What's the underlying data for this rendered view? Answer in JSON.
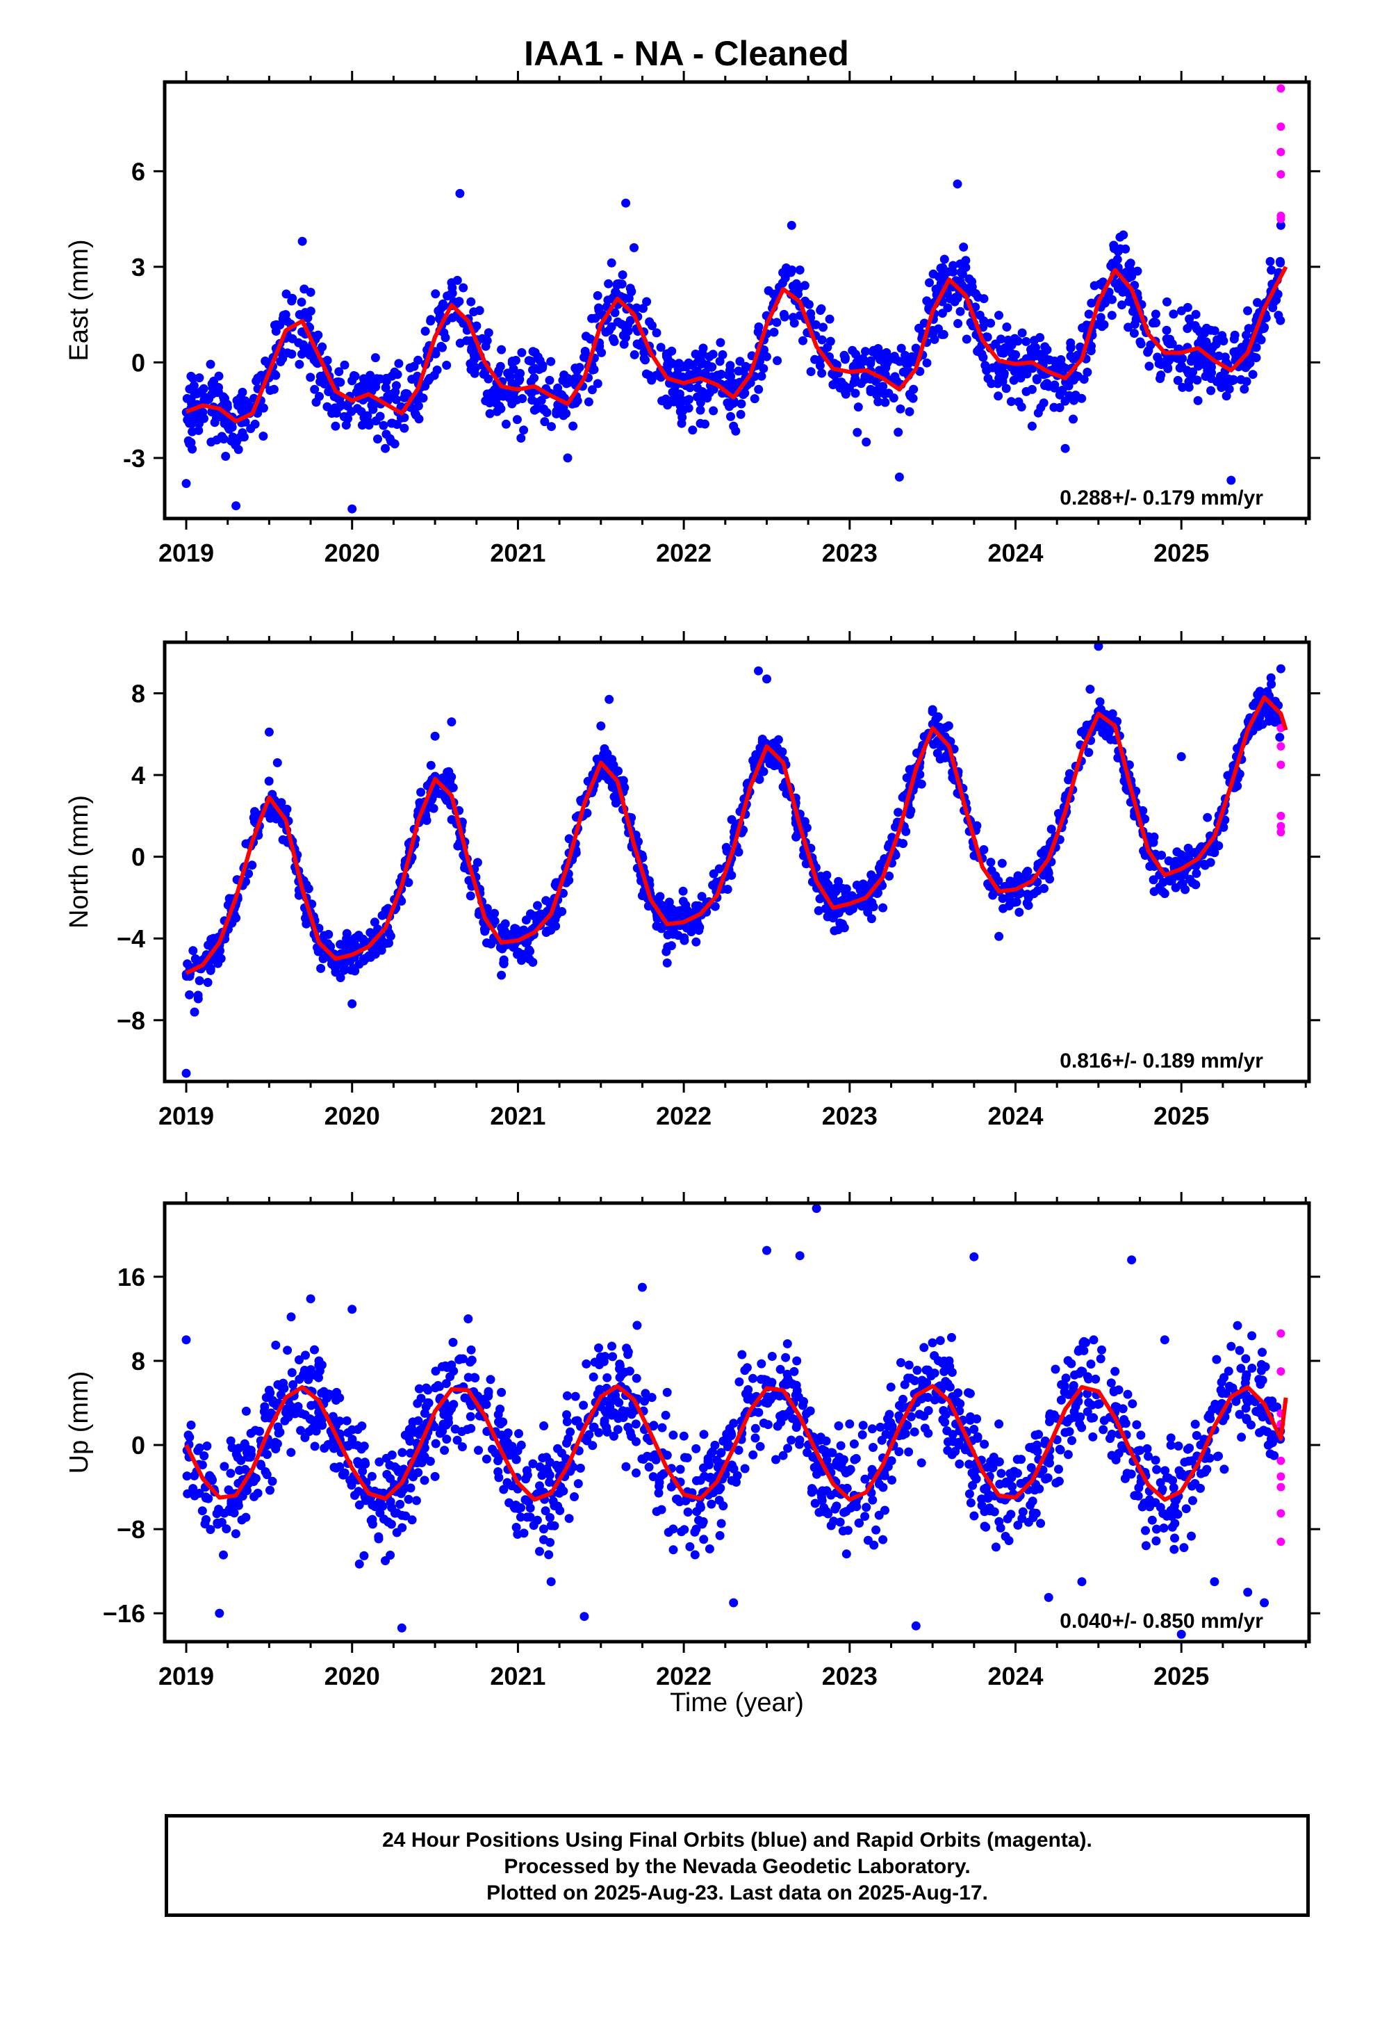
{
  "title": "IAA1  - NA - Cleaned",
  "xlabel": "Time (year)",
  "footer": {
    "line1": "24 Hour Positions Using Final Orbits (blue) and Rapid Orbits (magenta).",
    "line2": "Processed by the Nevada Geodetic Laboratory.",
    "line3": "Plotted on 2025-Aug-23. Last data on 2025-Aug-17."
  },
  "colors": {
    "final": "#0000ff",
    "rapid": "#ff00ff",
    "model": "#ff0000",
    "frame": "#000000"
  },
  "chart_data": [
    {
      "type": "scatter",
      "ylabel": "East (mm)",
      "rate": "0.288+/- 0.179 mm/yr",
      "xlim": [
        2018.87,
        2025.77
      ],
      "ylim": [
        -4.9,
        8.8
      ],
      "xticks": [
        2019,
        2020,
        2021,
        2022,
        2023,
        2024,
        2025
      ],
      "xticklabels": [
        "2019",
        "2020",
        "2021",
        "2022",
        "2023",
        "2024",
        "2025"
      ],
      "yticks": [
        -3,
        0,
        3,
        6
      ],
      "yticklabels": [
        "-3",
        "0",
        "3",
        "6"
      ],
      "model": {
        "x": [
          2019.0,
          2019.1,
          2019.2,
          2019.3,
          2019.4,
          2019.5,
          2019.6,
          2019.7,
          2019.8,
          2019.9,
          2020.0,
          2020.1,
          2020.2,
          2020.3,
          2020.4,
          2020.5,
          2020.6,
          2020.7,
          2020.8,
          2020.9,
          2021.0,
          2021.1,
          2021.2,
          2021.3,
          2021.4,
          2021.5,
          2021.6,
          2021.7,
          2021.8,
          2021.9,
          2022.0,
          2022.1,
          2022.2,
          2022.3,
          2022.4,
          2022.5,
          2022.6,
          2022.7,
          2022.8,
          2022.9,
          2023.0,
          2023.1,
          2023.2,
          2023.3,
          2023.4,
          2023.5,
          2023.6,
          2023.7,
          2023.8,
          2023.9,
          2024.0,
          2024.1,
          2024.2,
          2024.3,
          2024.4,
          2024.5,
          2024.6,
          2024.7,
          2024.8,
          2024.9,
          2025.0,
          2025.1,
          2025.2,
          2025.3,
          2025.4,
          2025.5,
          2025.6,
          2025.63
        ],
        "y": [
          -1.55,
          -1.35,
          -1.45,
          -1.85,
          -1.6,
          -0.3,
          1.0,
          1.3,
          0.2,
          -0.9,
          -1.2,
          -1.0,
          -1.3,
          -1.6,
          -0.8,
          0.8,
          1.8,
          1.3,
          0.0,
          -0.75,
          -0.85,
          -0.75,
          -1.05,
          -1.3,
          -0.5,
          1.2,
          2.0,
          1.5,
          0.3,
          -0.5,
          -0.65,
          -0.5,
          -0.7,
          -1.1,
          -0.4,
          1.2,
          2.3,
          1.9,
          0.5,
          -0.2,
          -0.3,
          -0.25,
          -0.5,
          -0.85,
          -0.2,
          1.6,
          2.6,
          2.1,
          0.7,
          0.05,
          -0.05,
          0.0,
          -0.3,
          -0.5,
          0.1,
          1.9,
          2.9,
          2.3,
          0.9,
          0.3,
          0.3,
          0.45,
          0.05,
          -0.25,
          0.3,
          1.7,
          2.7,
          3.0
        ]
      },
      "final_points": {
        "x": [
          2019.0,
          2019.05,
          2019.15,
          2019.3,
          2019.45,
          2019.6,
          2019.7,
          2019.75,
          2019.9,
          2020.0,
          2020.2,
          2020.4,
          2020.6,
          2020.65,
          2020.9,
          2021.1,
          2021.3,
          2021.55,
          2021.65,
          2021.7,
          2021.9,
          2022.1,
          2022.3,
          2022.5,
          2022.65,
          2022.7,
          2022.9,
          2023.1,
          2023.3,
          2023.5,
          2023.65,
          2023.7,
          2023.9,
          2024.1,
          2024.3,
          2024.5,
          2024.65,
          2024.7,
          2024.9,
          2025.1,
          2025.3,
          2025.5,
          2025.6
        ],
        "y": [
          -3.8,
          -1.0,
          -2.5,
          -4.5,
          -1.2,
          1.5,
          3.8,
          2.2,
          -2.0,
          -4.6,
          -2.7,
          -1.0,
          2.5,
          5.3,
          0.4,
          -1.5,
          -3.0,
          1.0,
          5.0,
          3.6,
          -0.2,
          -1.5,
          -2.0,
          0.9,
          4.3,
          2.9,
          -0.7,
          -2.5,
          -3.6,
          1.0,
          5.6,
          3.2,
          -0.5,
          -2.0,
          -2.7,
          1.2,
          4.0,
          2.7,
          0.0,
          -1.2,
          -3.7,
          1.1,
          4.3
        ]
      },
      "rapid_points": {
        "x": [
          2025.6,
          2025.6,
          2025.6,
          2025.6,
          2025.6,
          2025.6
        ],
        "y": [
          8.6,
          7.4,
          6.6,
          5.9,
          4.6,
          4.5
        ]
      }
    },
    {
      "type": "scatter",
      "ylabel": "North (mm)",
      "rate": "0.816+/- 0.189 mm/yr",
      "xlim": [
        2018.87,
        2025.77
      ],
      "ylim": [
        -11.0,
        10.5
      ],
      "xticks": [
        2019,
        2020,
        2021,
        2022,
        2023,
        2024,
        2025
      ],
      "xticklabels": [
        "2019",
        "2020",
        "2021",
        "2022",
        "2023",
        "2024",
        "2025"
      ],
      "yticks": [
        -8,
        -4,
        0,
        4,
        8
      ],
      "yticklabels": [
        "−8",
        "−4",
        "0",
        "4",
        "8"
      ],
      "model": {
        "x": [
          2019.0,
          2019.1,
          2019.2,
          2019.3,
          2019.4,
          2019.5,
          2019.6,
          2019.7,
          2019.8,
          2019.9,
          2020.0,
          2020.1,
          2020.2,
          2020.3,
          2020.4,
          2020.5,
          2020.6,
          2020.7,
          2020.8,
          2020.9,
          2021.0,
          2021.1,
          2021.2,
          2021.3,
          2021.4,
          2021.5,
          2021.6,
          2021.7,
          2021.8,
          2021.9,
          2022.0,
          2022.1,
          2022.2,
          2022.3,
          2022.4,
          2022.5,
          2022.6,
          2022.7,
          2022.8,
          2022.9,
          2023.0,
          2023.1,
          2023.2,
          2023.3,
          2023.4,
          2023.5,
          2023.6,
          2023.7,
          2023.8,
          2023.9,
          2024.0,
          2024.1,
          2024.2,
          2024.3,
          2024.4,
          2024.5,
          2024.6,
          2024.7,
          2024.8,
          2024.9,
          2025.0,
          2025.1,
          2025.2,
          2025.3,
          2025.4,
          2025.5,
          2025.6,
          2025.63
        ],
        "y": [
          -5.7,
          -5.3,
          -4.2,
          -2.0,
          0.8,
          2.9,
          1.8,
          -1.6,
          -4.2,
          -5.0,
          -4.8,
          -4.4,
          -3.5,
          -1.4,
          1.8,
          3.8,
          3.0,
          -0.2,
          -3.0,
          -4.2,
          -4.1,
          -3.7,
          -2.8,
          -0.4,
          2.6,
          4.6,
          3.7,
          0.6,
          -2.1,
          -3.3,
          -3.2,
          -2.8,
          -1.9,
          0.4,
          3.4,
          5.4,
          4.6,
          1.5,
          -1.2,
          -2.5,
          -2.3,
          -2.0,
          -1.0,
          1.3,
          4.3,
          6.3,
          5.4,
          2.3,
          -0.5,
          -1.7,
          -1.6,
          -1.2,
          -0.1,
          2.2,
          5.2,
          7.0,
          6.4,
          3.2,
          0.3,
          -0.9,
          -0.6,
          -0.1,
          1.0,
          3.5,
          6.2,
          7.8,
          7.0,
          6.2
        ]
      },
      "final_points": {
        "x": [
          2019.0,
          2019.05,
          2019.3,
          2019.5,
          2019.55,
          2019.8,
          2020.0,
          2020.3,
          2020.5,
          2020.6,
          2020.9,
          2021.2,
          2021.5,
          2021.55,
          2021.9,
          2022.2,
          2022.45,
          2022.5,
          2022.9,
          2023.2,
          2023.5,
          2023.55,
          2023.9,
          2024.2,
          2024.45,
          2024.5,
          2024.9,
          2025.0,
          2025.2,
          2025.5,
          2025.6
        ],
        "y": [
          -10.6,
          -7.6,
          -3.0,
          6.1,
          4.6,
          -3.5,
          -7.2,
          -1.0,
          5.9,
          6.6,
          -5.8,
          -3.0,
          6.4,
          7.7,
          -5.2,
          -2.0,
          9.1,
          8.7,
          -3.0,
          -2.5,
          7.2,
          5.4,
          -3.9,
          -0.8,
          8.2,
          10.3,
          -1.8,
          4.9,
          0.2,
          7.3,
          9.2
        ]
      },
      "rapid_points": {
        "x": [
          2025.6,
          2025.6,
          2025.6,
          2025.6,
          2025.6,
          2025.6
        ],
        "y": [
          6.3,
          5.4,
          4.5,
          2.0,
          1.5,
          1.2
        ]
      }
    },
    {
      "type": "scatter",
      "ylabel": "Up (mm)",
      "rate": "0.040+/- 0.850 mm/yr",
      "xlim": [
        2018.87,
        2025.77
      ],
      "ylim": [
        -18.7,
        23.0
      ],
      "xticks": [
        2019,
        2020,
        2021,
        2022,
        2023,
        2024,
        2025
      ],
      "xticklabels": [
        "2019",
        "2020",
        "2021",
        "2022",
        "2023",
        "2024",
        "2025"
      ],
      "yticks": [
        -16,
        -8,
        0,
        8,
        16
      ],
      "yticklabels": [
        "−16",
        "−8",
        "0",
        "8",
        "16"
      ],
      "model": {
        "x": [
          2019.0,
          2019.1,
          2019.2,
          2019.3,
          2019.4,
          2019.5,
          2019.6,
          2019.7,
          2019.8,
          2019.9,
          2020.0,
          2020.1,
          2020.2,
          2020.3,
          2020.4,
          2020.5,
          2020.6,
          2020.7,
          2020.8,
          2020.9,
          2021.0,
          2021.1,
          2021.2,
          2021.3,
          2021.4,
          2021.5,
          2021.6,
          2021.7,
          2021.8,
          2021.9,
          2022.0,
          2022.1,
          2022.2,
          2022.3,
          2022.4,
          2022.5,
          2022.6,
          2022.7,
          2022.8,
          2022.9,
          2023.0,
          2023.1,
          2023.2,
          2023.3,
          2023.4,
          2023.5,
          2023.6,
          2023.7,
          2023.8,
          2023.9,
          2024.0,
          2024.1,
          2024.2,
          2024.3,
          2024.4,
          2024.5,
          2024.6,
          2024.7,
          2024.8,
          2024.9,
          2025.0,
          2025.1,
          2025.2,
          2025.3,
          2025.4,
          2025.5,
          2025.6,
          2025.63
        ],
        "y": [
          0.0,
          -3.2,
          -5.0,
          -4.8,
          -2.3,
          1.5,
          4.5,
          5.5,
          4.2,
          1.0,
          -2.2,
          -4.6,
          -5.1,
          -3.6,
          -0.4,
          3.2,
          5.3,
          5.2,
          2.8,
          -0.6,
          -3.6,
          -5.2,
          -4.6,
          -2.0,
          1.6,
          4.6,
          5.6,
          4.3,
          1.1,
          -2.3,
          -4.7,
          -5.1,
          -3.5,
          -0.3,
          3.3,
          5.4,
          5.2,
          2.7,
          -0.7,
          -3.7,
          -5.2,
          -4.5,
          -1.9,
          1.7,
          4.7,
          5.6,
          4.2,
          0.9,
          -2.5,
          -4.8,
          -5.0,
          -3.4,
          -0.2,
          3.4,
          5.5,
          5.1,
          2.6,
          -0.8,
          -3.8,
          -5.2,
          -4.4,
          -1.8,
          1.8,
          4.6,
          5.5,
          3.9,
          0.6,
          4.5
        ]
      },
      "final_points": {
        "x": [
          2019.0,
          2019.2,
          2019.5,
          2019.75,
          2019.8,
          2020.0,
          2020.2,
          2020.3,
          2020.5,
          2020.7,
          2020.9,
          2021.2,
          2021.4,
          2021.5,
          2021.75,
          2021.9,
          2022.3,
          2022.5,
          2022.7,
          2022.8,
          2023.0,
          2023.2,
          2023.4,
          2023.6,
          2023.75,
          2023.9,
          2024.2,
          2024.4,
          2024.6,
          2024.7,
          2024.9,
          2025.0,
          2025.2,
          2025.4,
          2025.5
        ],
        "y": [
          10.0,
          -16.0,
          5.2,
          13.9,
          8.0,
          12.9,
          -11.0,
          -17.4,
          -3.0,
          12.0,
          5.0,
          -13.0,
          -16.3,
          8.0,
          15.0,
          5.0,
          -15.0,
          18.5,
          18.0,
          22.5,
          2.0,
          -9.0,
          -17.2,
          8.0,
          17.9,
          2.0,
          -14.5,
          -13.0,
          7.0,
          17.6,
          10.0,
          -18.0,
          -13.0,
          -14.0,
          -15.0
        ]
      },
      "rapid_points": {
        "x": [
          2025.6,
          2025.6,
          2025.6,
          2025.6,
          2025.6,
          2025.6,
          2025.6,
          2025.6,
          2025.6
        ],
        "y": [
          10.6,
          7.0,
          3.0,
          2.0,
          -1.5,
          -3.0,
          -4.0,
          -6.5,
          -9.2
        ]
      }
    }
  ]
}
